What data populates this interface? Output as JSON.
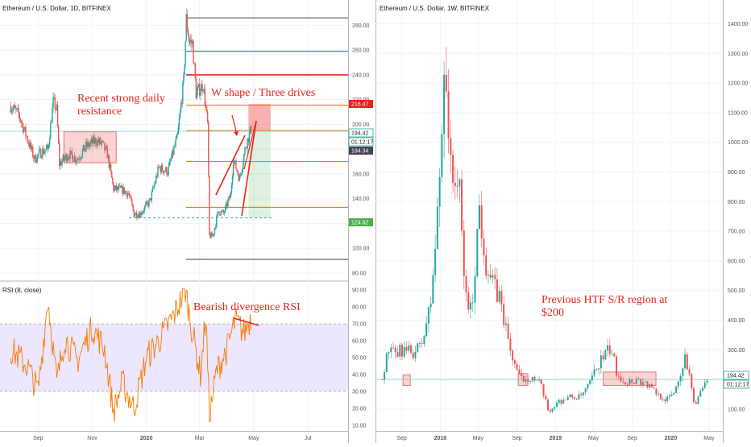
{
  "colors": {
    "up": "#26a69a",
    "down": "#ef5350",
    "rsi_line": "#f57c00",
    "rsi_band": "#e1d5ff",
    "annotation": "#e8231b",
    "grid": "#f0f3fa",
    "axis_text": "#50535e",
    "hline_black": "#555555",
    "hline_blue": "#2962ff",
    "hline_red": "#e8231b",
    "hline_orange": "#f57c00",
    "badge_red": "#e8231b",
    "badge_dark": "#434651",
    "badge_teal": "#26a69a",
    "badge_green": "#4caf50"
  },
  "left_chart": {
    "title": "Ethereum / U.S. Dollar, 1D, BITFINEX",
    "price_ticks": [
      "280.00",
      "260.00",
      "240.00",
      "220.00",
      "200.00",
      "180.00",
      "160.00",
      "140.00",
      "120.00",
      "100.00",
      "80.00"
    ],
    "time_ticks": [
      "Sep",
      "Nov",
      "2020",
      "Mar",
      "May",
      "Jul"
    ],
    "price_badges": [
      {
        "text": "216.47",
        "style": "red"
      },
      {
        "text": "194.42",
        "style": "white"
      },
      {
        "text": "01:12:17",
        "style": "white"
      },
      {
        "text": "194.34",
        "style": "dark"
      },
      {
        "text": "124.62",
        "style": "green"
      }
    ],
    "annotations": {
      "resistance": [
        "Recent strong daily",
        "resistance"
      ],
      "pattern": "W shape / Three drives",
      "divergence": "Bearish divergence RSI"
    }
  },
  "rsi": {
    "title": "RSI (8, close)",
    "ticks": [
      "90.00",
      "80.00",
      "70.00",
      "60.00",
      "50.00",
      "40.00",
      "30.00",
      "20.00",
      "10.00"
    ],
    "upper": 70,
    "lower": 30
  },
  "right_chart": {
    "title": "Ethereum / U.S. Dollar, 1W, BITFINEX",
    "price_ticks": [
      "1400.00",
      "1300.00",
      "1200.00",
      "1100.00",
      "1000.00",
      "900.00",
      "800.00",
      "700.00",
      "600.00",
      "500.00",
      "400.00",
      "300.00",
      "200.00",
      "100.00"
    ],
    "time_ticks": [
      "Sep",
      "2018",
      "May",
      "Sep",
      "2019",
      "May",
      "Sep",
      "2020",
      "May"
    ],
    "price_badges": [
      {
        "text": "194.42",
        "style": "white"
      },
      {
        "text": "01:12:17",
        "style": "white"
      }
    ],
    "annotation": [
      "Previous HTF S/R region at",
      "$200"
    ]
  },
  "chart_data": [
    {
      "type": "candlestick",
      "title": "Ethereum / U.S. Dollar, 1D, BITFINEX",
      "xlabel": "",
      "ylabel": "",
      "ylim": [
        80,
        290
      ],
      "x_ticks": [
        "Sep",
        "Nov",
        "2020",
        "Mar",
        "May",
        "Jul"
      ],
      "close_path": [
        {
          "x": "2019-08-01",
          "y": 215
        },
        {
          "x": "2019-08-10",
          "y": 208
        },
        {
          "x": "2019-08-20",
          "y": 188
        },
        {
          "x": "2019-08-28",
          "y": 172
        },
        {
          "x": "2019-09-05",
          "y": 178
        },
        {
          "x": "2019-09-12",
          "y": 180
        },
        {
          "x": "2019-09-18",
          "y": 218
        },
        {
          "x": "2019-09-22",
          "y": 212
        },
        {
          "x": "2019-09-25",
          "y": 168
        },
        {
          "x": "2019-10-05",
          "y": 176
        },
        {
          "x": "2019-10-15",
          "y": 172
        },
        {
          "x": "2019-10-25",
          "y": 182
        },
        {
          "x": "2019-11-05",
          "y": 187
        },
        {
          "x": "2019-11-12",
          "y": 184
        },
        {
          "x": "2019-11-18",
          "y": 176
        },
        {
          "x": "2019-11-25",
          "y": 148
        },
        {
          "x": "2019-12-05",
          "y": 147
        },
        {
          "x": "2019-12-12",
          "y": 144
        },
        {
          "x": "2019-12-18",
          "y": 128
        },
        {
          "x": "2019-12-25",
          "y": 128
        },
        {
          "x": "2020-01-05",
          "y": 138
        },
        {
          "x": "2020-01-15",
          "y": 165
        },
        {
          "x": "2020-01-25",
          "y": 162
        },
        {
          "x": "2020-02-05",
          "y": 190
        },
        {
          "x": "2020-02-12",
          "y": 235
        },
        {
          "x": "2020-02-15",
          "y": 285
        },
        {
          "x": "2020-02-18",
          "y": 268
        },
        {
          "x": "2020-02-22",
          "y": 265
        },
        {
          "x": "2020-02-26",
          "y": 225
        },
        {
          "x": "2020-03-05",
          "y": 232
        },
        {
          "x": "2020-03-10",
          "y": 200
        },
        {
          "x": "2020-03-12",
          "y": 110
        },
        {
          "x": "2020-03-16",
          "y": 110
        },
        {
          "x": "2020-03-22",
          "y": 130
        },
        {
          "x": "2020-03-28",
          "y": 128
        },
        {
          "x": "2020-04-05",
          "y": 143
        },
        {
          "x": "2020-04-08",
          "y": 172
        },
        {
          "x": "2020-04-15",
          "y": 156
        },
        {
          "x": "2020-04-22",
          "y": 183
        },
        {
          "x": "2020-04-28",
          "y": 196
        }
      ],
      "levels": [
        {
          "price": 286,
          "color": "black"
        },
        {
          "price": 259,
          "color": "blue"
        },
        {
          "price": 240,
          "color": "red"
        },
        {
          "price": 215.5,
          "color": "orange"
        },
        {
          "price": 195,
          "color": "orange"
        },
        {
          "price": 170,
          "color": "orange"
        },
        {
          "price": 133,
          "color": "orange"
        },
        {
          "price": 91,
          "color": "black"
        }
      ],
      "resistance_zone": {
        "from": "2019-09-30",
        "to": "2019-11-28",
        "low": 169,
        "high": 194
      },
      "position": {
        "from": "2020-04-25",
        "to": "2020-05-20",
        "entry": 194.34,
        "stop": 216.47,
        "target": 124.62
      }
    },
    {
      "type": "line",
      "title": "RSI (8, close)",
      "ylim": [
        8,
        92
      ],
      "x": [
        "2019-08-01",
        "2019-08-20",
        "2019-09-01",
        "2019-09-12",
        "2019-09-22",
        "2019-10-01",
        "2019-10-15",
        "2019-11-01",
        "2019-11-15",
        "2019-11-25",
        "2019-12-05",
        "2019-12-18",
        "2020-01-01",
        "2020-01-15",
        "2020-02-01",
        "2020-02-14",
        "2020-02-22",
        "2020-03-02",
        "2020-03-08",
        "2020-03-12",
        "2020-03-20",
        "2020-04-01",
        "2020-04-10",
        "2020-04-20",
        "2020-04-28"
      ],
      "series": [
        {
          "values": [
            55,
            45,
            30,
            85,
            35,
            62,
            48,
            68,
            55,
            18,
            35,
            20,
            50,
            60,
            75,
            90,
            65,
            40,
            75,
            15,
            42,
            55,
            72,
            65,
            74
          ]
        }
      ],
      "bands": [
        30,
        70
      ],
      "annotation": "Bearish divergence RSI"
    },
    {
      "type": "candlestick",
      "title": "Ethereum / U.S. Dollar, 1W, BITFINEX",
      "ylim": [
        40,
        1480
      ],
      "x_ticks": [
        "Sep",
        "2018",
        "May",
        "Sep",
        "2019",
        "May",
        "Sep",
        "2020",
        "May"
      ],
      "close_path": [
        {
          "x": "2017-07-01",
          "y": 200
        },
        {
          "x": "2017-07-20",
          "y": 300
        },
        {
          "x": "2017-08-10",
          "y": 280
        },
        {
          "x": "2017-09-01",
          "y": 300
        },
        {
          "x": "2017-10-01",
          "y": 290
        },
        {
          "x": "2017-11-01",
          "y": 310
        },
        {
          "x": "2017-12-01",
          "y": 450
        },
        {
          "x": "2017-12-20",
          "y": 700
        },
        {
          "x": "2018-01-05",
          "y": 1000
        },
        {
          "x": "2018-01-14",
          "y": 1350
        },
        {
          "x": "2018-01-25",
          "y": 1100
        },
        {
          "x": "2018-02-05",
          "y": 850
        },
        {
          "x": "2018-02-15",
          "y": 900
        },
        {
          "x": "2018-03-01",
          "y": 850
        },
        {
          "x": "2018-03-20",
          "y": 500
        },
        {
          "x": "2018-04-10",
          "y": 420
        },
        {
          "x": "2018-04-25",
          "y": 650
        },
        {
          "x": "2018-05-05",
          "y": 780
        },
        {
          "x": "2018-05-25",
          "y": 600
        },
        {
          "x": "2018-06-15",
          "y": 520
        },
        {
          "x": "2018-07-10",
          "y": 470
        },
        {
          "x": "2018-08-10",
          "y": 300
        },
        {
          "x": "2018-09-10",
          "y": 200
        },
        {
          "x": "2018-10-15",
          "y": 210
        },
        {
          "x": "2018-11-15",
          "y": 180
        },
        {
          "x": "2018-12-10",
          "y": 90
        },
        {
          "x": "2019-01-10",
          "y": 125
        },
        {
          "x": "2019-02-15",
          "y": 140
        },
        {
          "x": "2019-03-20",
          "y": 140
        },
        {
          "x": "2019-04-15",
          "y": 175
        },
        {
          "x": "2019-05-20",
          "y": 260
        },
        {
          "x": "2019-06-25",
          "y": 305
        },
        {
          "x": "2019-07-15",
          "y": 220
        },
        {
          "x": "2019-08-15",
          "y": 190
        },
        {
          "x": "2019-09-15",
          "y": 200
        },
        {
          "x": "2019-10-15",
          "y": 185
        },
        {
          "x": "2019-11-20",
          "y": 150
        },
        {
          "x": "2019-12-20",
          "y": 130
        },
        {
          "x": "2020-01-15",
          "y": 165
        },
        {
          "x": "2020-02-14",
          "y": 270
        },
        {
          "x": "2020-03-01",
          "y": 225
        },
        {
          "x": "2020-03-15",
          "y": 115
        },
        {
          "x": "2020-04-10",
          "y": 165
        },
        {
          "x": "2020-04-28",
          "y": 194
        }
      ],
      "sr_zones": [
        {
          "from": "2017-09-05",
          "to": "2017-09-28",
          "low": 180,
          "high": 215
        },
        {
          "from": "2018-09-05",
          "to": "2018-10-05",
          "low": 180,
          "high": 220
        },
        {
          "from": "2019-06-01",
          "to": "2019-11-15",
          "low": 180,
          "high": 225
        }
      ],
      "annotation": "Previous HTF S/R region at $200"
    }
  ]
}
